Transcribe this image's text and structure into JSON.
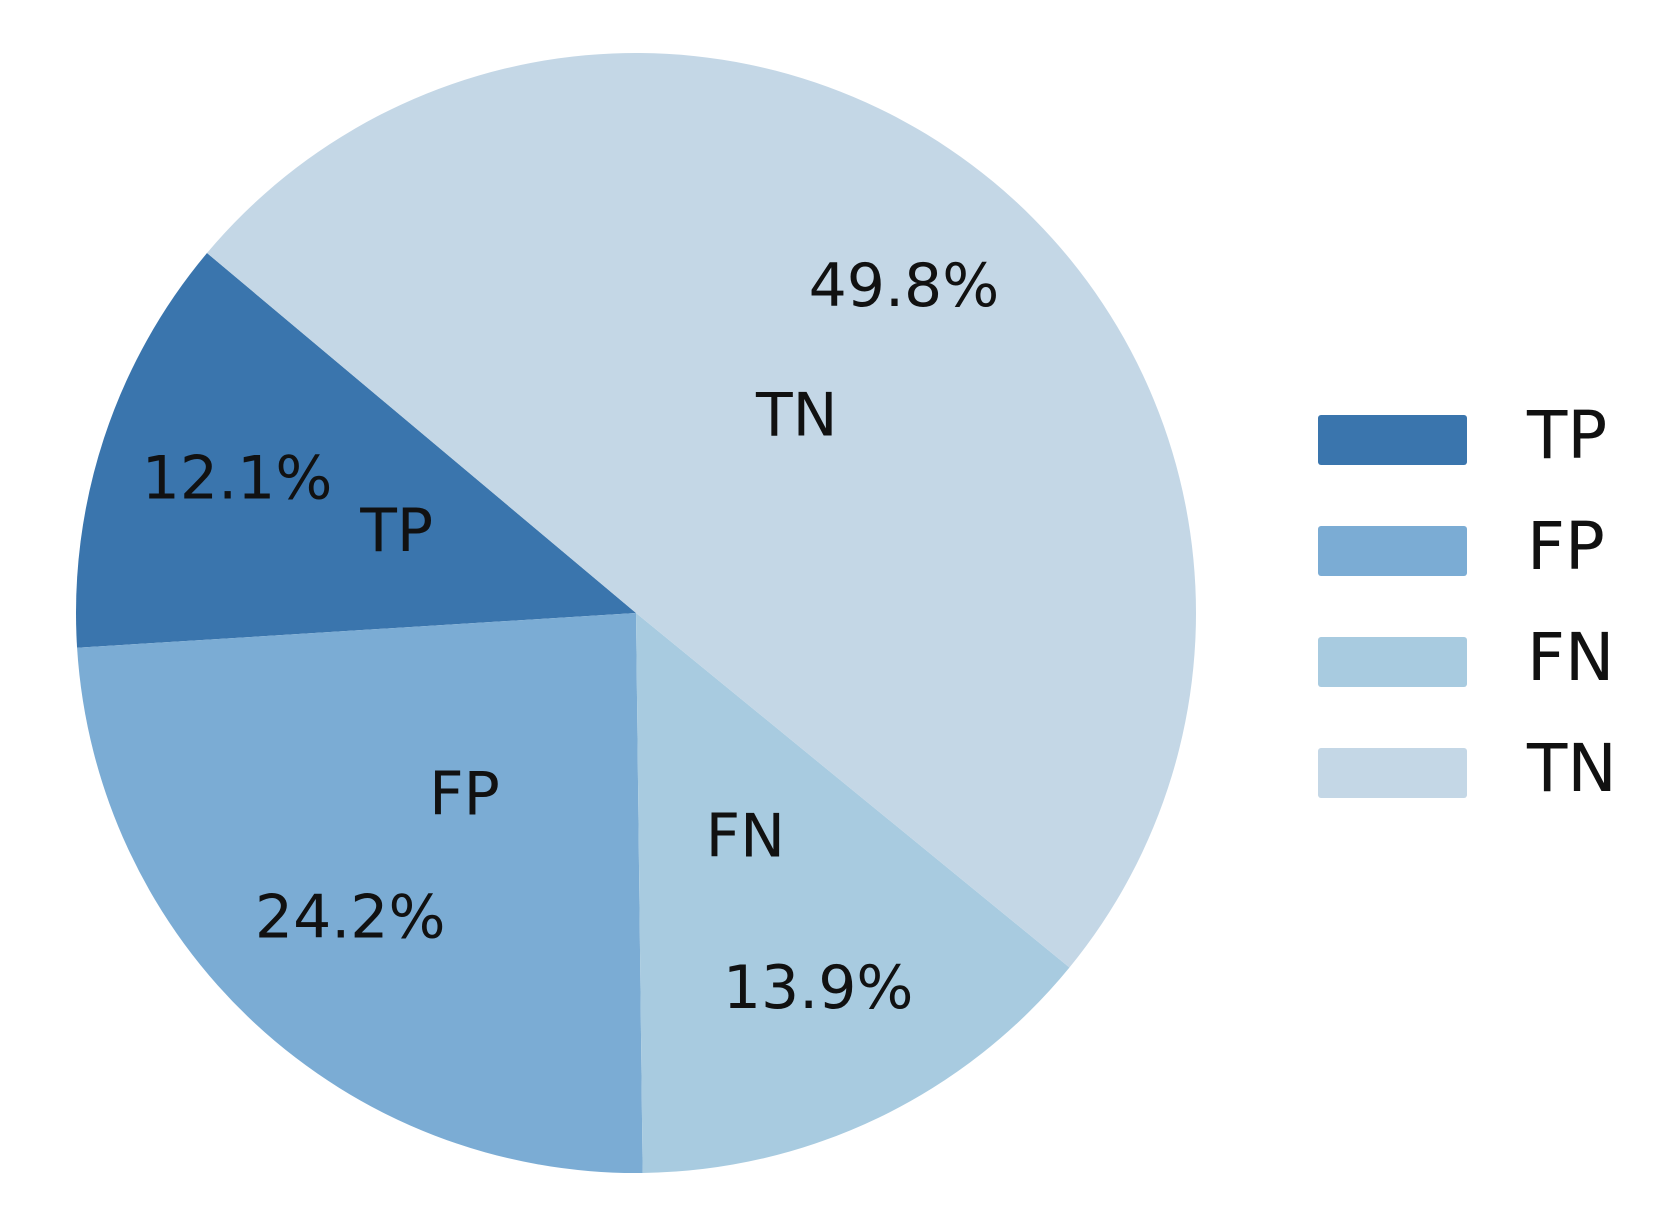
{
  "chart_data": {
    "type": "pie",
    "categories": [
      "TP",
      "FP",
      "FN",
      "TN"
    ],
    "values": [
      12.1,
      24.2,
      13.9,
      49.8
    ],
    "value_labels": [
      "12.1%",
      "24.2%",
      "13.9%",
      "49.8%"
    ],
    "colors": [
      "#3a75ad",
      "#7bacd4",
      "#a8cbe0",
      "#c4d7e6"
    ],
    "startangle": 140,
    "legend": "right"
  }
}
